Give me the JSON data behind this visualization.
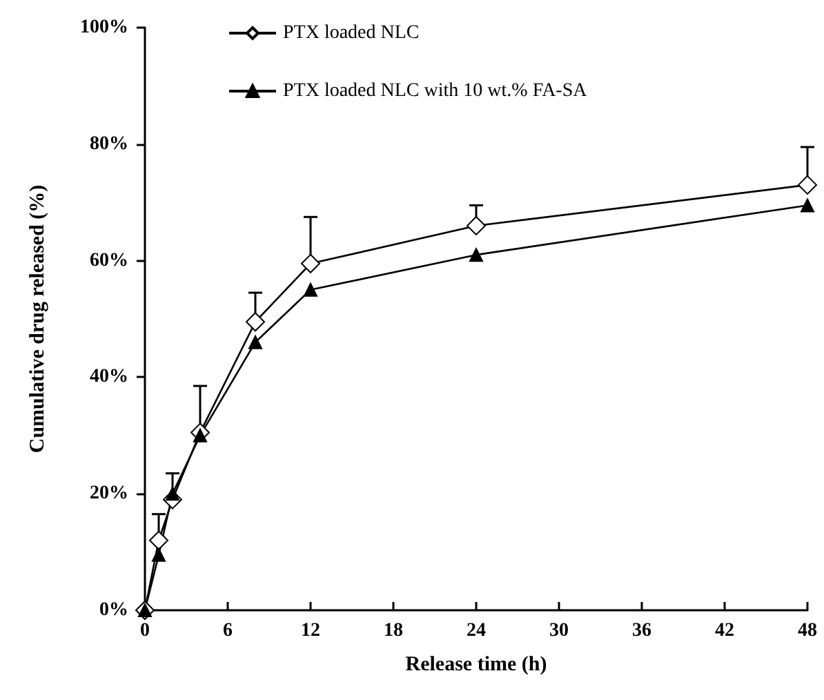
{
  "chart_data": {
    "type": "line",
    "xlabel": "Release time (h)",
    "ylabel": "Cumulative drug released (%)",
    "xlim": [
      0,
      48
    ],
    "xticks": [
      0,
      6,
      12,
      18,
      24,
      30,
      36,
      42,
      48
    ],
    "ylim": [
      0,
      100
    ],
    "yticks": [
      {
        "value": 0,
        "label": "0%"
      },
      {
        "value": 20,
        "label": "20%"
      },
      {
        "value": 40,
        "label": "40%"
      },
      {
        "value": 60,
        "label": "60%"
      },
      {
        "value": 80,
        "label": "80%"
      },
      {
        "value": 100,
        "label": "100%"
      }
    ],
    "grid": false,
    "legend": "top left",
    "line_style": "solid",
    "series": [
      {
        "name": "PTX loaded NLC",
        "color": "#000000",
        "marker": "diamond",
        "x": [
          0,
          1,
          2,
          4,
          8,
          12,
          24,
          48
        ],
        "values": [
          0,
          12,
          19,
          30.5,
          49.5,
          59.5,
          66,
          73
        ],
        "errors": [
          null,
          [
            12,
            16.5
          ],
          [
            19,
            23.5
          ],
          [
            30.5,
            38.5
          ],
          [
            49.5,
            54.5
          ],
          [
            59.5,
            67.5
          ],
          [
            66,
            69.5
          ],
          [
            73,
            79.5
          ]
        ]
      },
      {
        "name": "PTX loaded NLC with 10 wt.% FA-SA",
        "color": "#000000",
        "marker": "triangle",
        "x": [
          0,
          1,
          2,
          4,
          8,
          12,
          24,
          48
        ],
        "values": [
          0,
          9.5,
          20,
          30,
          46,
          55,
          61,
          69.5
        ]
      }
    ]
  }
}
